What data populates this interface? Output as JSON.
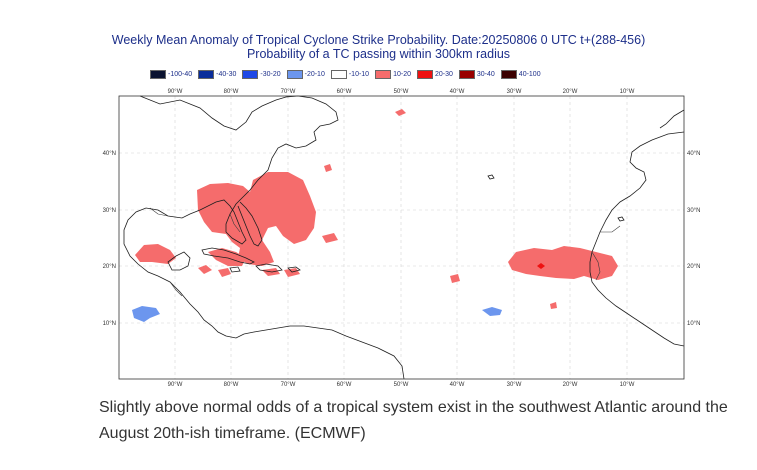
{
  "title_line1": "Weekly Mean Anomaly of Tropical Cyclone Strike Probability. Date:20250806  0 UTC t+(288-456)",
  "title_line2": "Probability of a TC passing within  300km radius",
  "legend": [
    {
      "label": "-100-40",
      "color": "#0b1330"
    },
    {
      "label": "-40-30",
      "color": "#0a2d9a"
    },
    {
      "label": "-30-20",
      "color": "#1f49e6"
    },
    {
      "label": "-20-10",
      "color": "#6c96ee"
    },
    {
      "label": "-10-10",
      "color": "#ffffff"
    },
    {
      "label": "10-20",
      "color": "#f56c6c"
    },
    {
      "label": "20-30",
      "color": "#ee1111"
    },
    {
      "label": "30-40",
      "color": "#990000"
    },
    {
      "label": "40-100",
      "color": "#3a0000"
    }
  ],
  "map": {
    "lon_labels": [
      "90°W",
      "80°W",
      "70°W",
      "60°W",
      "50°W",
      "40°W",
      "30°W",
      "20°W",
      "10°W"
    ],
    "lat_labels": [
      "40°N",
      "30°N",
      "20°N",
      "10°N"
    ]
  },
  "caption": "Slightly above normal odds of a tropical system exist in the southwest Atlantic around the August 20th-ish timeframe. (ECMWF)"
}
